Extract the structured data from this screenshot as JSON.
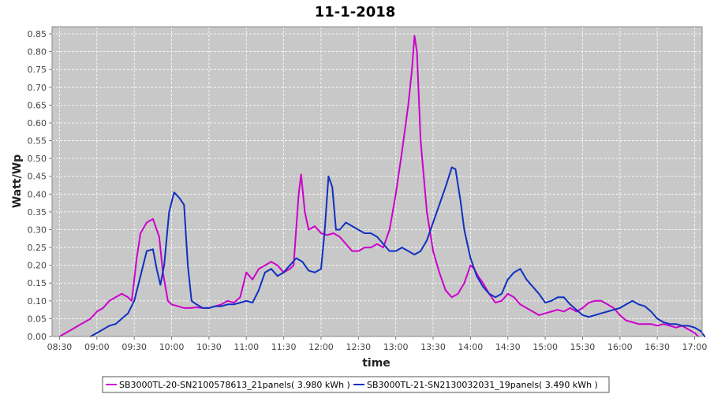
{
  "chart_data": {
    "type": "line",
    "title": "11-1-2018",
    "xlabel": "time",
    "ylabel": "Watt/Wp",
    "xlim": [
      "08:24",
      "17:06"
    ],
    "ylim": [
      0,
      0.87
    ],
    "x_ticks": [
      "08:30",
      "09:00",
      "09:30",
      "10:00",
      "10:30",
      "11:00",
      "11:30",
      "12:00",
      "12:30",
      "13:00",
      "13:30",
      "14:00",
      "14:30",
      "15:00",
      "15:30",
      "16:00",
      "16:30",
      "17:00"
    ],
    "y_ticks": [
      "0.00",
      "0.05",
      "0.10",
      "0.15",
      "0.20",
      "0.25",
      "0.30",
      "0.35",
      "0.40",
      "0.45",
      "0.50",
      "0.55",
      "0.60",
      "0.65",
      "0.70",
      "0.75",
      "0.80",
      "0.85"
    ],
    "grid": true,
    "legend_position": "bottom",
    "plot_background": "#c8c8c8",
    "series": [
      {
        "name": "SB3000TL-20-SN2100578613_21panels( 3.980 kWh )",
        "color": "#cc00cc",
        "points": [
          [
            "08:30",
            0.0
          ],
          [
            "08:35",
            0.01
          ],
          [
            "08:40",
            0.02
          ],
          [
            "08:45",
            0.03
          ],
          [
            "08:50",
            0.04
          ],
          [
            "08:55",
            0.05
          ],
          [
            "09:00",
            0.07
          ],
          [
            "09:05",
            0.08
          ],
          [
            "09:10",
            0.1
          ],
          [
            "09:15",
            0.11
          ],
          [
            "09:20",
            0.12
          ],
          [
            "09:25",
            0.11
          ],
          [
            "09:28",
            0.1
          ],
          [
            "09:32",
            0.22
          ],
          [
            "09:35",
            0.29
          ],
          [
            "09:40",
            0.32
          ],
          [
            "09:45",
            0.33
          ],
          [
            "09:50",
            0.28
          ],
          [
            "09:53",
            0.18
          ],
          [
            "09:57",
            0.1
          ],
          [
            "10:00",
            0.09
          ],
          [
            "10:05",
            0.085
          ],
          [
            "10:10",
            0.08
          ],
          [
            "10:15",
            0.08
          ],
          [
            "10:20",
            0.082
          ],
          [
            "10:25",
            0.08
          ],
          [
            "10:30",
            0.08
          ],
          [
            "10:35",
            0.085
          ],
          [
            "10:40",
            0.09
          ],
          [
            "10:45",
            0.1
          ],
          [
            "10:50",
            0.095
          ],
          [
            "10:55",
            0.11
          ],
          [
            "11:00",
            0.18
          ],
          [
            "11:05",
            0.16
          ],
          [
            "11:10",
            0.19
          ],
          [
            "11:15",
            0.2
          ],
          [
            "11:20",
            0.21
          ],
          [
            "11:25",
            0.2
          ],
          [
            "11:30",
            0.18
          ],
          [
            "11:35",
            0.19
          ],
          [
            "11:38",
            0.2
          ],
          [
            "11:42",
            0.4
          ],
          [
            "11:44",
            0.455
          ],
          [
            "11:47",
            0.35
          ],
          [
            "11:50",
            0.3
          ],
          [
            "11:55",
            0.31
          ],
          [
            "12:00",
            0.29
          ],
          [
            "12:05",
            0.285
          ],
          [
            "12:10",
            0.29
          ],
          [
            "12:15",
            0.28
          ],
          [
            "12:20",
            0.26
          ],
          [
            "12:25",
            0.24
          ],
          [
            "12:30",
            0.24
          ],
          [
            "12:35",
            0.25
          ],
          [
            "12:40",
            0.25
          ],
          [
            "12:45",
            0.26
          ],
          [
            "12:50",
            0.25
          ],
          [
            "12:55",
            0.3
          ],
          [
            "13:00",
            0.4
          ],
          [
            "13:05",
            0.52
          ],
          [
            "13:10",
            0.65
          ],
          [
            "13:13",
            0.75
          ],
          [
            "13:15",
            0.845
          ],
          [
            "13:17",
            0.8
          ],
          [
            "13:20",
            0.55
          ],
          [
            "13:25",
            0.35
          ],
          [
            "13:30",
            0.24
          ],
          [
            "13:35",
            0.18
          ],
          [
            "13:40",
            0.13
          ],
          [
            "13:45",
            0.11
          ],
          [
            "13:50",
            0.12
          ],
          [
            "13:55",
            0.15
          ],
          [
            "14:00",
            0.2
          ],
          [
            "14:03",
            0.19
          ],
          [
            "14:06",
            0.17
          ],
          [
            "14:10",
            0.15
          ],
          [
            "14:15",
            0.12
          ],
          [
            "14:20",
            0.095
          ],
          [
            "14:25",
            0.1
          ],
          [
            "14:30",
            0.12
          ],
          [
            "14:35",
            0.11
          ],
          [
            "14:40",
            0.09
          ],
          [
            "14:45",
            0.08
          ],
          [
            "14:50",
            0.07
          ],
          [
            "14:55",
            0.06
          ],
          [
            "15:00",
            0.065
          ],
          [
            "15:05",
            0.07
          ],
          [
            "15:10",
            0.075
          ],
          [
            "15:15",
            0.07
          ],
          [
            "15:20",
            0.08
          ],
          [
            "15:25",
            0.07
          ],
          [
            "15:30",
            0.08
          ],
          [
            "15:35",
            0.095
          ],
          [
            "15:40",
            0.1
          ],
          [
            "15:45",
            0.1
          ],
          [
            "15:50",
            0.09
          ],
          [
            "15:55",
            0.08
          ],
          [
            "16:00",
            0.06
          ],
          [
            "16:05",
            0.045
          ],
          [
            "16:10",
            0.04
          ],
          [
            "16:15",
            0.035
          ],
          [
            "16:20",
            0.035
          ],
          [
            "16:25",
            0.035
          ],
          [
            "16:30",
            0.03
          ],
          [
            "16:35",
            0.035
          ],
          [
            "16:40",
            0.03
          ],
          [
            "16:45",
            0.025
          ],
          [
            "16:50",
            0.03
          ],
          [
            "16:55",
            0.02
          ],
          [
            "17:00",
            0.01
          ],
          [
            "17:03",
            0.0
          ]
        ]
      },
      {
        "name": "SB3000TL-21-SN2130032031_19panels( 3.490 kWh )",
        "color": "#1030c0",
        "points": [
          [
            "08:55",
            0.0
          ],
          [
            "09:00",
            0.01
          ],
          [
            "09:05",
            0.02
          ],
          [
            "09:10",
            0.03
          ],
          [
            "09:15",
            0.035
          ],
          [
            "09:20",
            0.05
          ],
          [
            "09:25",
            0.065
          ],
          [
            "09:30",
            0.1
          ],
          [
            "09:35",
            0.17
          ],
          [
            "09:40",
            0.24
          ],
          [
            "09:45",
            0.245
          ],
          [
            "09:48",
            0.19
          ],
          [
            "09:51",
            0.145
          ],
          [
            "09:54",
            0.2
          ],
          [
            "09:58",
            0.35
          ],
          [
            "10:02",
            0.405
          ],
          [
            "10:06",
            0.39
          ],
          [
            "10:10",
            0.37
          ],
          [
            "10:13",
            0.2
          ],
          [
            "10:16",
            0.1
          ],
          [
            "10:20",
            0.09
          ],
          [
            "10:25",
            0.08
          ],
          [
            "10:30",
            0.08
          ],
          [
            "10:35",
            0.085
          ],
          [
            "10:40",
            0.085
          ],
          [
            "10:45",
            0.09
          ],
          [
            "10:50",
            0.09
          ],
          [
            "10:55",
            0.095
          ],
          [
            "11:00",
            0.1
          ],
          [
            "11:05",
            0.095
          ],
          [
            "11:10",
            0.13
          ],
          [
            "11:15",
            0.18
          ],
          [
            "11:20",
            0.19
          ],
          [
            "11:25",
            0.17
          ],
          [
            "11:30",
            0.18
          ],
          [
            "11:35",
            0.2
          ],
          [
            "11:40",
            0.22
          ],
          [
            "11:45",
            0.21
          ],
          [
            "11:50",
            0.185
          ],
          [
            "11:55",
            0.18
          ],
          [
            "12:00",
            0.19
          ],
          [
            "12:03",
            0.3
          ],
          [
            "12:06",
            0.45
          ],
          [
            "12:09",
            0.42
          ],
          [
            "12:12",
            0.3
          ],
          [
            "12:15",
            0.3
          ],
          [
            "12:20",
            0.32
          ],
          [
            "12:25",
            0.31
          ],
          [
            "12:30",
            0.3
          ],
          [
            "12:35",
            0.29
          ],
          [
            "12:40",
            0.29
          ],
          [
            "12:45",
            0.28
          ],
          [
            "12:50",
            0.26
          ],
          [
            "12:55",
            0.24
          ],
          [
            "13:00",
            0.24
          ],
          [
            "13:05",
            0.25
          ],
          [
            "13:10",
            0.24
          ],
          [
            "13:15",
            0.23
          ],
          [
            "13:20",
            0.24
          ],
          [
            "13:25",
            0.27
          ],
          [
            "13:30",
            0.32
          ],
          [
            "13:35",
            0.37
          ],
          [
            "13:40",
            0.42
          ],
          [
            "13:45",
            0.475
          ],
          [
            "13:48",
            0.47
          ],
          [
            "13:52",
            0.38
          ],
          [
            "13:55",
            0.3
          ],
          [
            "14:00",
            0.22
          ],
          [
            "14:05",
            0.17
          ],
          [
            "14:10",
            0.14
          ],
          [
            "14:15",
            0.12
          ],
          [
            "14:20",
            0.11
          ],
          [
            "14:25",
            0.12
          ],
          [
            "14:30",
            0.16
          ],
          [
            "14:35",
            0.18
          ],
          [
            "14:40",
            0.19
          ],
          [
            "14:45",
            0.16
          ],
          [
            "14:50",
            0.14
          ],
          [
            "14:55",
            0.12
          ],
          [
            "15:00",
            0.095
          ],
          [
            "15:05",
            0.1
          ],
          [
            "15:10",
            0.11
          ],
          [
            "15:15",
            0.11
          ],
          [
            "15:20",
            0.09
          ],
          [
            "15:25",
            0.075
          ],
          [
            "15:30",
            0.06
          ],
          [
            "15:35",
            0.055
          ],
          [
            "15:40",
            0.06
          ],
          [
            "15:45",
            0.065
          ],
          [
            "15:50",
            0.07
          ],
          [
            "15:55",
            0.075
          ],
          [
            "16:00",
            0.08
          ],
          [
            "16:05",
            0.09
          ],
          [
            "16:10",
            0.1
          ],
          [
            "16:15",
            0.09
          ],
          [
            "16:20",
            0.085
          ],
          [
            "16:25",
            0.07
          ],
          [
            "16:30",
            0.05
          ],
          [
            "16:35",
            0.04
          ],
          [
            "16:40",
            0.035
          ],
          [
            "16:45",
            0.035
          ],
          [
            "16:50",
            0.03
          ],
          [
            "16:55",
            0.03
          ],
          [
            "17:00",
            0.025
          ],
          [
            "17:05",
            0.015
          ],
          [
            "17:08",
            0.0
          ]
        ]
      }
    ]
  }
}
